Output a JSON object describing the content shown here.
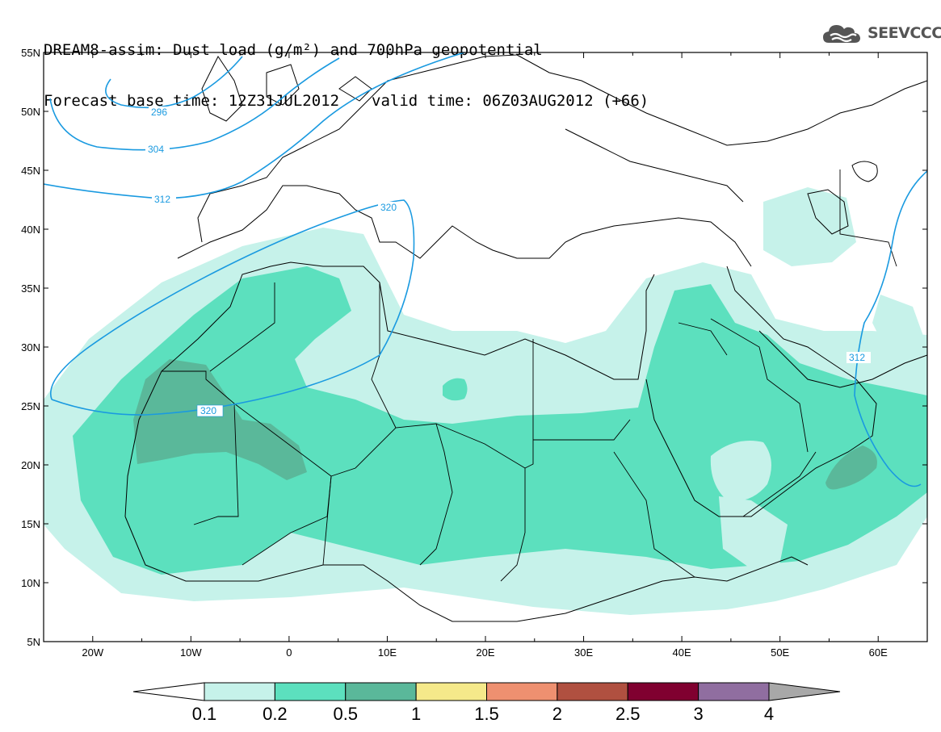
{
  "title": {
    "line1": "DREAM8-assim: Dust load (g/m²) and 700hPa geopotential",
    "base_time": "Forecast base time: 12Z31JUL2012",
    "valid_time": "valid time: 06Z03AUG2012 (+66)"
  },
  "logo": {
    "text": "SEEVCCC",
    "icon": "cloud-logo-icon"
  },
  "axes": {
    "lat_labels": [
      "55N",
      "50N",
      "45N",
      "40N",
      "35N",
      "30N",
      "25N",
      "20N",
      "15N",
      "10N",
      "5N"
    ],
    "lon_labels": [
      "20W",
      "10W",
      "0",
      "10E",
      "20E",
      "30E",
      "40E",
      "50E",
      "60E"
    ]
  },
  "contours": [
    {
      "label": "296"
    },
    {
      "label": "304"
    },
    {
      "label": "312"
    },
    {
      "label": "320"
    },
    {
      "label": "320"
    },
    {
      "label": "312"
    }
  ],
  "legend": {
    "labels": [
      "0.1",
      "0.2",
      "0.5",
      "1",
      "1.5",
      "2",
      "2.5",
      "3",
      "4"
    ],
    "colors": [
      "#ffffff",
      "#c6f2ea",
      "#5ce0be",
      "#5ab89a",
      "#f5e98a",
      "#ee9070",
      "#b05040",
      "#800030",
      "#906ea0",
      "#a8a8a8"
    ]
  },
  "colors": {
    "low": "#c6f2ea",
    "mid": "#5ce0be",
    "high": "#5ab89a",
    "contour": "#1a9ae0"
  }
}
